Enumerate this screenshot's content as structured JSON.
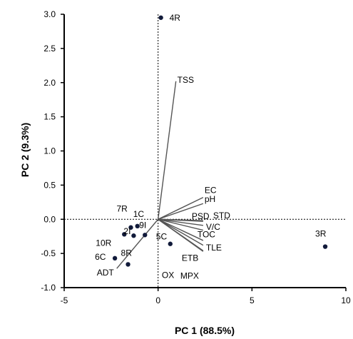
{
  "chart_data": {
    "type": "scatter",
    "xlabel": "PC 1 (88.5%)",
    "ylabel": "PC 2 (9.3%)",
    "xlim": [
      -5,
      10
    ],
    "ylim": [
      -1.0,
      3.0
    ],
    "x_ticks": [
      "-5",
      "0",
      "5",
      "10"
    ],
    "y_ticks": [
      "-1.0",
      "-0.5",
      "0.0",
      "0.5",
      "1.0",
      "1.5",
      "2.0",
      "2.5",
      "3.0"
    ],
    "reference_lines": {
      "x": 0,
      "y": 0,
      "style": "dotted"
    },
    "grid": false,
    "points": [
      {
        "label": "4R",
        "x": 0.15,
        "y": 2.95
      },
      {
        "label": "3R",
        "x": 8.9,
        "y": -0.4
      },
      {
        "label": "7R",
        "x": -1.45,
        "y": -0.12
      },
      {
        "label": "1C",
        "x": -1.1,
        "y": -0.1
      },
      {
        "label": "2I",
        "x": -1.3,
        "y": -0.24
      },
      {
        "label": "9I",
        "x": -0.7,
        "y": -0.23
      },
      {
        "label": "10R",
        "x": -1.8,
        "y": -0.22
      },
      {
        "label": "5C",
        "x": 0.65,
        "y": -0.36
      },
      {
        "label": "6C",
        "x": -2.3,
        "y": -0.57
      },
      {
        "label": "8R",
        "x": -1.6,
        "y": -0.66
      }
    ],
    "loadings": [
      {
        "label": "TSS",
        "x": 0.95,
        "y": 2.02
      },
      {
        "label": "EC",
        "x": 2.4,
        "y": 0.32
      },
      {
        "label": "pH",
        "x": 2.4,
        "y": 0.23
      },
      {
        "label": "PSD",
        "x": 2.4,
        "y": -0.02
      },
      {
        "label": "STD",
        "x": 2.4,
        "y": -0.03
      },
      {
        "label": "V/C",
        "x": 2.4,
        "y": -0.09
      },
      {
        "label": "TOC",
        "x": 2.4,
        "y": -0.16
      },
      {
        "label": "TLE",
        "x": 2.4,
        "y": -0.31
      },
      {
        "label": "ETB",
        "x": 2.4,
        "y": -0.38
      },
      {
        "label": "OX",
        "x": 2.4,
        "y": -0.46
      },
      {
        "label": "MPX",
        "x": 2.4,
        "y": -0.47
      },
      {
        "label": "ADT",
        "x": -2.2,
        "y": -0.72
      }
    ]
  }
}
